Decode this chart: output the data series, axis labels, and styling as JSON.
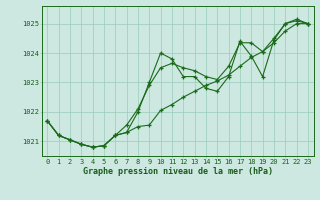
{
  "x": [
    0,
    1,
    2,
    3,
    4,
    5,
    6,
    7,
    8,
    9,
    10,
    11,
    12,
    13,
    14,
    15,
    16,
    17,
    18,
    19,
    20,
    21,
    22,
    23
  ],
  "y_main": [
    1021.7,
    1021.2,
    1021.05,
    1020.9,
    1020.8,
    1020.85,
    1021.2,
    1021.3,
    1022.0,
    1023.0,
    1024.0,
    1023.8,
    1023.2,
    1023.2,
    1022.8,
    1022.7,
    1023.2,
    1024.4,
    1023.9,
    1023.2,
    1024.45,
    1025.0,
    1025.1,
    1025.0
  ],
  "y_low": [
    1021.7,
    1021.2,
    1021.05,
    1020.9,
    1020.8,
    1020.85,
    1021.2,
    1021.3,
    1021.5,
    1021.55,
    1022.05,
    1022.25,
    1022.5,
    1022.7,
    1022.9,
    1023.05,
    1023.25,
    1023.55,
    1023.85,
    1024.05,
    1024.35,
    1024.75,
    1025.0,
    1025.0
  ],
  "y_high": [
    1021.7,
    1021.2,
    1021.05,
    1020.9,
    1020.8,
    1020.85,
    1021.2,
    1021.55,
    1022.1,
    1022.9,
    1023.5,
    1023.65,
    1023.5,
    1023.4,
    1023.2,
    1023.1,
    1023.55,
    1024.35,
    1024.35,
    1024.05,
    1024.5,
    1025.0,
    1025.15,
    1025.0
  ],
  "line_color": "#1a6b1a",
  "bg_color": "#cce8e0",
  "grid_color": "#99ccbb",
  "text_color": "#1a5c1a",
  "title": "Graphe pression niveau de la mer (hPa)",
  "ylim_min": 1020.5,
  "ylim_max": 1025.6,
  "yticks": [
    1021,
    1022,
    1023,
    1024,
    1025
  ],
  "xlim_min": -0.5,
  "xlim_max": 23.5,
  "xlabel_fontsize": 6.0,
  "tick_fontsize": 5.0
}
